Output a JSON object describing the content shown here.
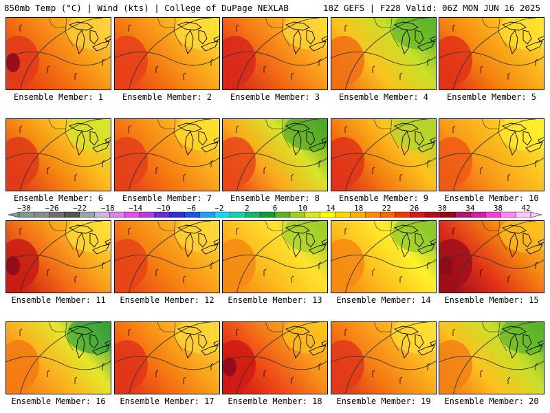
{
  "header": {
    "left": "850mb Temp (°C) | Wind (kts) | College of DuPage NEXLAB",
    "right": "18Z GEFS | F228 Valid: 06Z MON JUN 16 2025"
  },
  "colorbar": {
    "labels": [
      "−30",
      "−26",
      "−22",
      "−18",
      "−14",
      "−10",
      "−6",
      "−2",
      "2",
      "6",
      "10",
      "14",
      "18",
      "22",
      "26",
      "30",
      "34",
      "38",
      "42"
    ],
    "colors": [
      "#7f9a8e",
      "#8a8a8a",
      "#6e6e6e",
      "#555555",
      "#9aa3ab",
      "#c9b8d8",
      "#d985e3",
      "#e14fe8",
      "#b43fd6",
      "#6a2bd0",
      "#2c32c8",
      "#1d55e0",
      "#1aa3ea",
      "#14d6f5",
      "#1ad0a8",
      "#16b56a",
      "#139a3a",
      "#5ab41e",
      "#9cd01c",
      "#d8e81a",
      "#ffff00",
      "#ffd700",
      "#ffb000",
      "#ff8c00",
      "#f56a00",
      "#e83c00",
      "#d41a12",
      "#b00e16",
      "#8e0a1a",
      "#b01870",
      "#d01ea4",
      "#f040d4",
      "#ff88f0",
      "#ffc8fc"
    ]
  },
  "members": [
    {
      "label": "Ensemble Member: 1",
      "palette": [
        "#e23a1a",
        "#f26a10",
        "#f8a01a",
        "#ffd23a"
      ],
      "hot_spot": true
    },
    {
      "label": "Ensemble Member: 2",
      "palette": [
        "#e8401a",
        "#f47a12",
        "#fbae1e",
        "#ffe034"
      ],
      "hot_spot": false
    },
    {
      "label": "Ensemble Member: 3",
      "palette": [
        "#d8281a",
        "#f06414",
        "#fb9e1c",
        "#ffd838"
      ],
      "hot_spot": false
    },
    {
      "label": "Ensemble Member: 4",
      "palette": [
        "#f07016",
        "#fcc21e",
        "#c8e02a",
        "#5fb52a"
      ],
      "hot_spot": false
    },
    {
      "label": "Ensemble Member: 5",
      "palette": [
        "#e03418",
        "#f5820f",
        "#fbb21c",
        "#ffe32e"
      ],
      "hot_spot": false
    },
    {
      "label": "Ensemble Member: 6",
      "palette": [
        "#e03a1a",
        "#f4800f",
        "#fcc01e",
        "#d6e62c"
      ],
      "hot_spot": false
    },
    {
      "label": "Ensemble Member: 7",
      "palette": [
        "#e4401a",
        "#f47610",
        "#fba81c",
        "#ffe02e"
      ],
      "hot_spot": false
    },
    {
      "label": "Ensemble Member: 8",
      "palette": [
        "#e84818",
        "#fba81c",
        "#d8e42a",
        "#4ea628"
      ],
      "hot_spot": false
    },
    {
      "label": "Ensemble Member: 9",
      "palette": [
        "#e0341a",
        "#f4800f",
        "#fcc41e",
        "#b0d62a"
      ],
      "hot_spot": false
    },
    {
      "label": "Ensemble Member: 10",
      "palette": [
        "#ee5a14",
        "#f89a18",
        "#fcc21e",
        "#fff02c"
      ],
      "hot_spot": false
    },
    {
      "label": "Ensemble Member: 11",
      "palette": [
        "#c81c14",
        "#f06414",
        "#fba81c",
        "#ffe034"
      ],
      "hot_spot": true
    },
    {
      "label": "Ensemble Member: 12",
      "palette": [
        "#e64418",
        "#f47a12",
        "#fba81c",
        "#ffd838"
      ],
      "hot_spot": false
    },
    {
      "label": "Ensemble Member: 13",
      "palette": [
        "#f58a12",
        "#fcbc1e",
        "#ffe32e",
        "#9cd02a"
      ],
      "hot_spot": false
    },
    {
      "label": "Ensemble Member: 14",
      "palette": [
        "#f58a12",
        "#fcc21e",
        "#fff02c",
        "#8cc82a"
      ],
      "hot_spot": false
    },
    {
      "label": "Ensemble Member: 15",
      "palette": [
        "#a00e1a",
        "#e0301a",
        "#f4800f",
        "#fcc21e"
      ],
      "hot_spot": true
    },
    {
      "label": "Ensemble Member: 16",
      "palette": [
        "#f47a12",
        "#fbae1e",
        "#e4e82a",
        "#34a23a"
      ],
      "hot_spot": false
    },
    {
      "label": "Ensemble Member: 17",
      "palette": [
        "#e0341a",
        "#f47010",
        "#fba81c",
        "#ffd838"
      ],
      "hot_spot": false
    },
    {
      "label": "Ensemble Member: 18",
      "palette": [
        "#d01a14",
        "#ee4a16",
        "#f7901a",
        "#fcc21e"
      ],
      "hot_spot": true
    },
    {
      "label": "Ensemble Member: 19",
      "palette": [
        "#e03a1a",
        "#f47a12",
        "#fbae1e",
        "#ffe034"
      ],
      "hot_spot": false
    },
    {
      "label": "Ensemble Member: 20",
      "palette": [
        "#f28014",
        "#fcc21e",
        "#c8e02a",
        "#5ab42a"
      ],
      "hot_spot": false
    }
  ]
}
